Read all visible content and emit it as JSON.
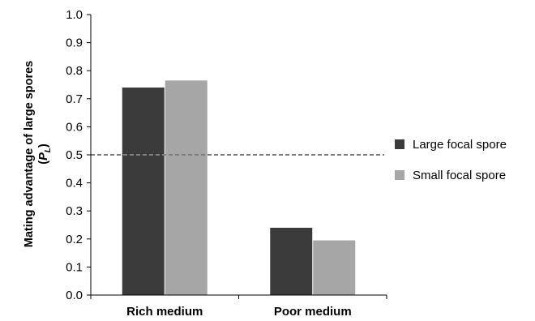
{
  "chart_data": {
    "type": "bar",
    "title": "",
    "xlabel": "",
    "ylabel": "Mating advantage of large spores",
    "ylabel_symbol": "P",
    "ylabel_subscript": "L",
    "categories": [
      "Rich medium",
      "Poor medium"
    ],
    "series": [
      {
        "name": "Large focal spore",
        "color": "#3b3b3b",
        "values": [
          0.74,
          0.24
        ]
      },
      {
        "name": "Small focal spore",
        "color": "#a6a6a6",
        "values": [
          0.765,
          0.195
        ]
      }
    ],
    "ylim": [
      0,
      1.0
    ],
    "yticks": [
      "0.0",
      "0.1",
      "0.2",
      "0.3",
      "0.4",
      "0.5",
      "0.6",
      "0.7",
      "0.8",
      "0.9",
      "1.0"
    ],
    "reference_line": {
      "value": 0.5,
      "style": "dashed",
      "color": "#7f7f7f"
    },
    "grid": false,
    "legend_position": "right"
  }
}
